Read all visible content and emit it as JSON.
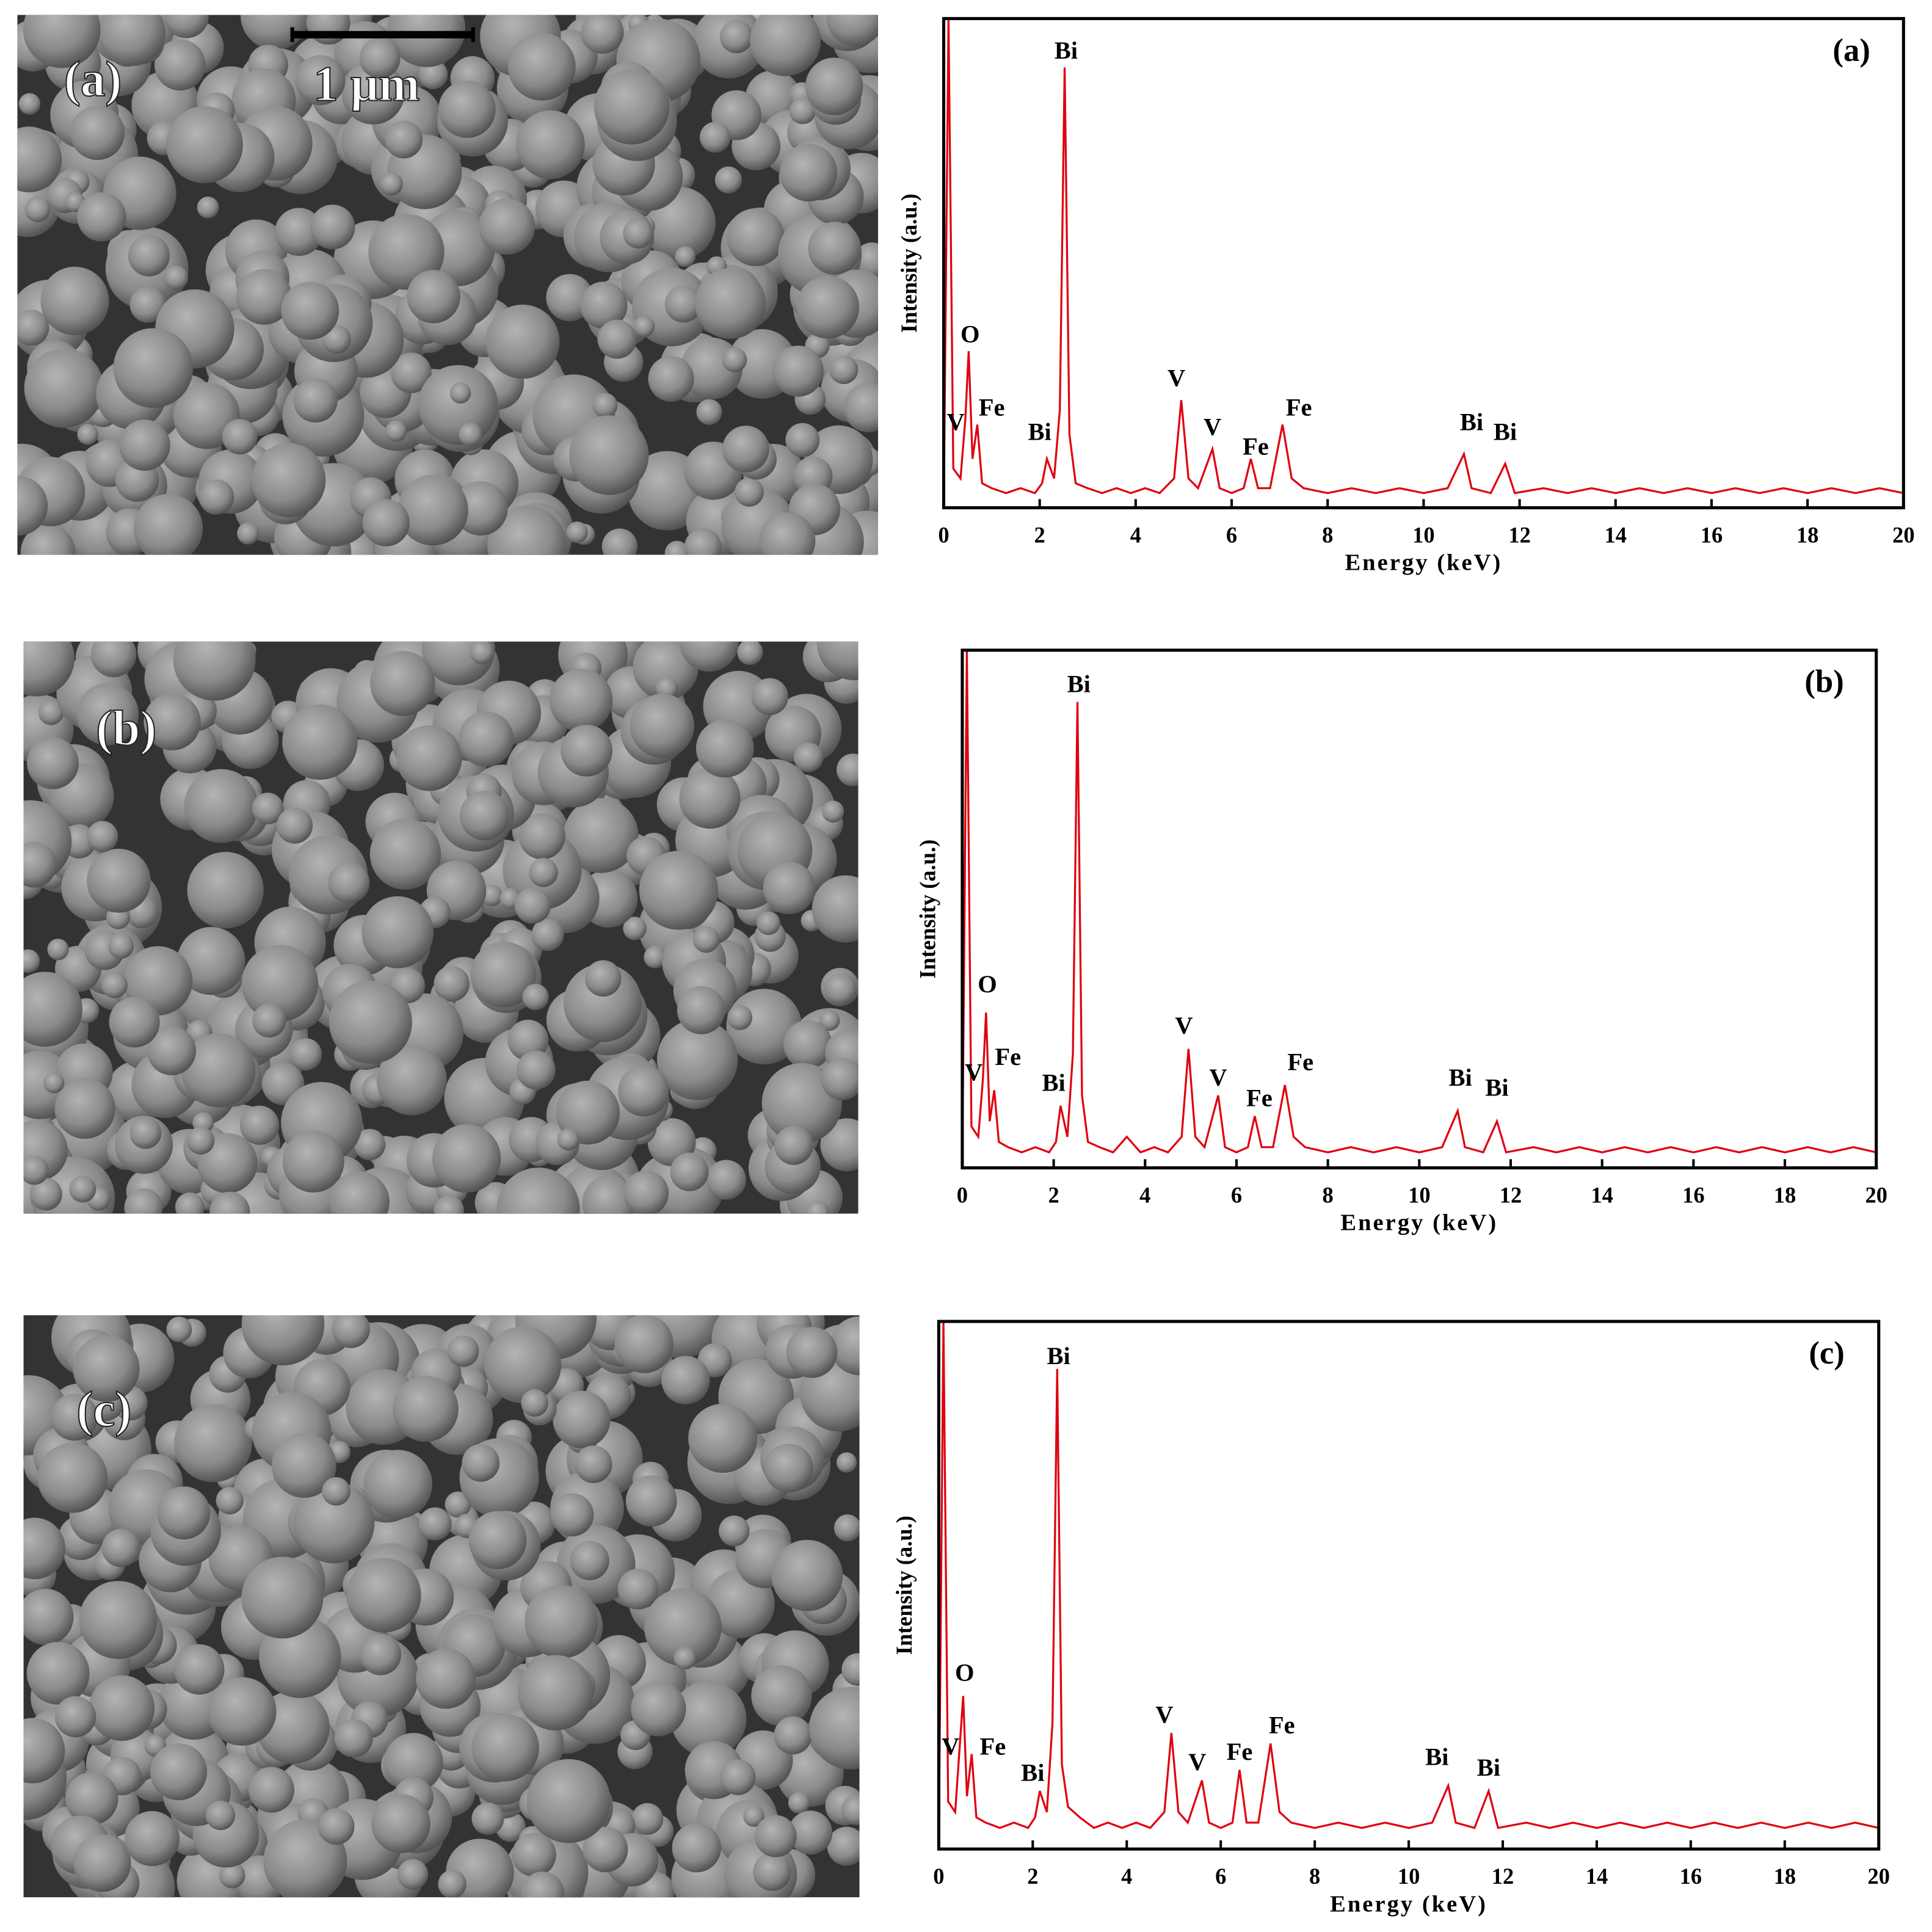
{
  "sem_images": [
    {
      "label": "(a)",
      "scale_bar": "1 μm"
    },
    {
      "label": "(b)"
    },
    {
      "label": "(c)"
    }
  ],
  "chart_data": [
    {
      "type": "line",
      "panel_label": "(a)",
      "xlabel": "Energy (keV)",
      "ylabel": "Intensity (a.u.)",
      "xlim": [
        0,
        20
      ],
      "xticks": [
        0,
        2,
        4,
        6,
        8,
        10,
        12,
        14,
        16,
        18,
        20
      ],
      "ylim": [
        0,
        100
      ],
      "color": "#e0000f",
      "x": [
        0,
        0.1,
        0.2,
        0.35,
        0.45,
        0.52,
        0.6,
        0.7,
        0.8,
        1.0,
        1.3,
        1.6,
        1.9,
        2.05,
        2.15,
        2.3,
        2.42,
        2.52,
        2.62,
        2.75,
        3.0,
        3.3,
        3.6,
        3.9,
        4.2,
        4.5,
        4.8,
        4.95,
        5.1,
        5.3,
        5.6,
        5.75,
        6.0,
        6.25,
        6.4,
        6.55,
        6.8,
        7.06,
        7.25,
        7.5,
        8.0,
        8.5,
        9.0,
        9.5,
        10.0,
        10.5,
        10.84,
        11.0,
        11.4,
        11.7,
        11.9,
        12.5,
        13,
        13.5,
        14,
        14.5,
        15,
        15.5,
        16,
        16.5,
        17,
        17.5,
        18,
        18.5,
        19,
        19.5,
        20
      ],
      "values": [
        0,
        100,
        8,
        6,
        18,
        32,
        10,
        17,
        5,
        4,
        3,
        4,
        3,
        5,
        10,
        6,
        20,
        90,
        15,
        5,
        4,
        3,
        4,
        3,
        4,
        3,
        6,
        22,
        6,
        4,
        12,
        4,
        3,
        4,
        10,
        4,
        4,
        17,
        6,
        4,
        3,
        4,
        3,
        4,
        3,
        4,
        11,
        4,
        3,
        9,
        3,
        4,
        3,
        4,
        3,
        4,
        3,
        4,
        3,
        4,
        3,
        4,
        3,
        4,
        3,
        4,
        3
      ],
      "annotations": [
        {
          "text": "Bi",
          "x": 2.55,
          "y": 93
        },
        {
          "text": "O",
          "x": 0.55,
          "y": 35
        },
        {
          "text": "V",
          "x": 0.25,
          "y": 17
        },
        {
          "text": "Fe",
          "x": 1.0,
          "y": 20
        },
        {
          "text": "Bi",
          "x": 2.0,
          "y": 15
        },
        {
          "text": "V",
          "x": 4.85,
          "y": 26
        },
        {
          "text": "V",
          "x": 5.6,
          "y": 16
        },
        {
          "text": "Fe",
          "x": 6.5,
          "y": 12
        },
        {
          "text": "Fe",
          "x": 7.4,
          "y": 20
        },
        {
          "text": "Bi",
          "x": 11.0,
          "y": 17
        },
        {
          "text": "Bi",
          "x": 11.7,
          "y": 15
        }
      ]
    },
    {
      "type": "line",
      "panel_label": "(b)",
      "xlabel": "Energy (keV)",
      "ylabel": "Intensity (a.u.)",
      "xlim": [
        0,
        20
      ],
      "xticks": [
        0,
        2,
        4,
        6,
        8,
        10,
        12,
        14,
        16,
        18,
        20
      ],
      "ylim": [
        0,
        100
      ],
      "color": "#e0000f",
      "x": [
        0,
        0.1,
        0.2,
        0.35,
        0.45,
        0.52,
        0.6,
        0.7,
        0.8,
        1.0,
        1.3,
        1.6,
        1.9,
        2.05,
        2.15,
        2.3,
        2.42,
        2.52,
        2.62,
        2.75,
        3.0,
        3.3,
        3.6,
        3.9,
        4.2,
        4.5,
        4.8,
        4.95,
        5.1,
        5.3,
        5.6,
        5.75,
        6.0,
        6.25,
        6.4,
        6.55,
        6.8,
        7.06,
        7.25,
        7.5,
        8.0,
        8.5,
        9.0,
        9.5,
        10.0,
        10.5,
        10.84,
        11.0,
        11.4,
        11.7,
        11.9,
        12.5,
        13,
        13.5,
        14,
        14.5,
        15,
        15.5,
        16,
        16.5,
        17,
        17.5,
        18,
        18.5,
        19,
        19.5,
        20
      ],
      "values": [
        0,
        100,
        8,
        6,
        17,
        30,
        9,
        15,
        5,
        4,
        3,
        4,
        3,
        5,
        12,
        6,
        22,
        90,
        14,
        5,
        4,
        3,
        6,
        3,
        4,
        3,
        6,
        23,
        6,
        4,
        14,
        4,
        3,
        4,
        10,
        4,
        4,
        16,
        6,
        4,
        3,
        4,
        3,
        4,
        3,
        4,
        11,
        4,
        3,
        9,
        3,
        4,
        3,
        4,
        3,
        4,
        3,
        4,
        3,
        4,
        3,
        4,
        3,
        4,
        3,
        4,
        3
      ],
      "annotations": [
        {
          "text": "Bi",
          "x": 2.55,
          "y": 93
        },
        {
          "text": "O",
          "x": 0.55,
          "y": 35
        },
        {
          "text": "V",
          "x": 0.25,
          "y": 18
        },
        {
          "text": "Fe",
          "x": 1.0,
          "y": 21
        },
        {
          "text": "Bi",
          "x": 2.0,
          "y": 16
        },
        {
          "text": "V",
          "x": 4.85,
          "y": 27
        },
        {
          "text": "V",
          "x": 5.6,
          "y": 17
        },
        {
          "text": "Fe",
          "x": 6.5,
          "y": 13
        },
        {
          "text": "Fe",
          "x": 7.4,
          "y": 20
        },
        {
          "text": "Bi",
          "x": 10.9,
          "y": 17
        },
        {
          "text": "Bi",
          "x": 11.7,
          "y": 15
        }
      ]
    },
    {
      "type": "line",
      "panel_label": "(c)",
      "xlabel": "Energy (keV)",
      "ylabel": "Intensity (a.u.)",
      "xlim": [
        0,
        20
      ],
      "xticks": [
        0,
        2,
        4,
        6,
        8,
        10,
        12,
        14,
        16,
        18,
        20
      ],
      "ylim": [
        0,
        100
      ],
      "color": "#e0000f",
      "x": [
        0,
        0.1,
        0.2,
        0.35,
        0.45,
        0.52,
        0.6,
        0.7,
        0.8,
        1.0,
        1.3,
        1.6,
        1.9,
        2.05,
        2.15,
        2.3,
        2.42,
        2.52,
        2.62,
        2.75,
        3.0,
        3.3,
        3.6,
        3.9,
        4.2,
        4.5,
        4.8,
        4.95,
        5.1,
        5.3,
        5.6,
        5.75,
        6.0,
        6.25,
        6.4,
        6.55,
        6.8,
        7.06,
        7.25,
        7.5,
        8.0,
        8.5,
        9.0,
        9.5,
        10.0,
        10.5,
        10.84,
        11.0,
        11.4,
        11.7,
        11.9,
        12.5,
        13,
        13.5,
        14,
        14.5,
        15,
        15.5,
        16,
        16.5,
        17,
        17.5,
        18,
        18.5,
        19,
        19.5,
        20
      ],
      "values": [
        0,
        100,
        9,
        7,
        20,
        29,
        10,
        18,
        6,
        5,
        4,
        5,
        4,
        6,
        11,
        7,
        24,
        91,
        16,
        8,
        6,
        4,
        5,
        4,
        5,
        4,
        7,
        22,
        7,
        5,
        13,
        5,
        4,
        5,
        15,
        5,
        5,
        20,
        7,
        5,
        4,
        5,
        4,
        5,
        4,
        5,
        12,
        5,
        4,
        11,
        4,
        5,
        4,
        5,
        4,
        5,
        4,
        5,
        4,
        5,
        4,
        5,
        4,
        5,
        4,
        5,
        4
      ],
      "annotations": [
        {
          "text": "Bi",
          "x": 2.55,
          "y": 93
        },
        {
          "text": "O",
          "x": 0.55,
          "y": 33
        },
        {
          "text": "V",
          "x": 0.25,
          "y": 19
        },
        {
          "text": "Fe",
          "x": 1.15,
          "y": 19
        },
        {
          "text": "Bi",
          "x": 2.0,
          "y": 14
        },
        {
          "text": "V",
          "x": 4.8,
          "y": 25
        },
        {
          "text": "V",
          "x": 5.5,
          "y": 16
        },
        {
          "text": "Fe",
          "x": 6.4,
          "y": 18
        },
        {
          "text": "Fe",
          "x": 7.3,
          "y": 23
        },
        {
          "text": "Bi",
          "x": 10.6,
          "y": 17
        },
        {
          "text": "Bi",
          "x": 11.7,
          "y": 15
        }
      ]
    }
  ]
}
